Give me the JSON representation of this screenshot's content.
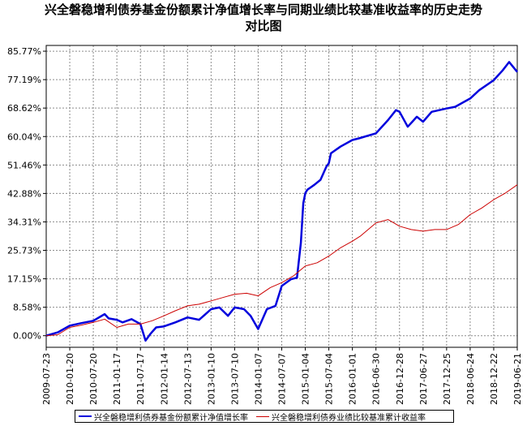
{
  "chart_data": {
    "type": "line",
    "title_lines": [
      "兴全磐稳增利债券基金份额累计净值增长率与同期业绩比较基准收益率的历史走势",
      "对比图"
    ],
    "y_ticks": [
      "85.77%",
      "77.19%",
      "68.62%",
      "60.04%",
      "51.46%",
      "42.88%",
      "34.31%",
      "25.73%",
      "17.15%",
      "8.58%",
      "0.00%"
    ],
    "y_tick_values": [
      85.77,
      77.19,
      68.62,
      60.04,
      51.46,
      42.88,
      34.31,
      25.73,
      17.15,
      8.58,
      0.0
    ],
    "ylim": [
      -3.5,
      87.5
    ],
    "x_ticks": [
      "2009-07-23",
      "2010-01-20",
      "2010-07-20",
      "2011-01-17",
      "2011-07-17",
      "2012-01-14",
      "2012-07-13",
      "2013-01-10",
      "2013-07-10",
      "2014-01-07",
      "2014-07-07",
      "2015-01-04",
      "2015-07-04",
      "2016-01-01",
      "2016-06-30",
      "2016-12-28",
      "2017-06-27",
      "2017-12-25",
      "2018-06-24",
      "2018-12-22",
      "2019-06-21"
    ],
    "grid": true,
    "legend_position": "bottom",
    "series": [
      {
        "name": "兴全磐稳增利债券基金份额累计净值增长率",
        "color": "#0000dd",
        "x": [
          "2009-07-23",
          "2009-10-20",
          "2010-01-20",
          "2010-04-20",
          "2010-07-20",
          "2010-10-15",
          "2010-11-15",
          "2011-01-17",
          "2011-03-01",
          "2011-05-10",
          "2011-07-17",
          "2011-08-25",
          "2011-10-01",
          "2011-11-15",
          "2012-01-14",
          "2012-04-10",
          "2012-07-13",
          "2012-10-10",
          "2013-01-10",
          "2013-03-15",
          "2013-05-20",
          "2013-07-10",
          "2013-09-20",
          "2013-11-10",
          "2014-01-07",
          "2014-03-15",
          "2014-05-20",
          "2014-07-07",
          "2014-09-15",
          "2014-11-01",
          "2014-12-01",
          "2014-12-20",
          "2015-01-04",
          "2015-01-20",
          "2015-03-15",
          "2015-05-01",
          "2015-06-15",
          "2015-07-04",
          "2015-07-20",
          "2015-10-01",
          "2016-01-01",
          "2016-02-20",
          "2016-06-30",
          "2016-10-01",
          "2016-12-01",
          "2016-12-28",
          "2017-03-01",
          "2017-05-10",
          "2017-06-27",
          "2017-09-01",
          "2017-12-25",
          "2018-03-01",
          "2018-06-24",
          "2018-09-01",
          "2018-12-22",
          "2019-03-01",
          "2019-04-20",
          "2019-06-21"
        ],
        "values": [
          0.0,
          1.0,
          3.0,
          3.8,
          4.5,
          6.5,
          5.2,
          4.8,
          4.0,
          5.0,
          3.5,
          -1.5,
          0.5,
          2.5,
          2.8,
          4.0,
          5.5,
          4.8,
          8.0,
          8.5,
          6.0,
          8.5,
          8.0,
          6.0,
          2.0,
          8.0,
          9.0,
          15.0,
          17.0,
          17.5,
          28.0,
          40.0,
          43.0,
          44.0,
          45.5,
          47.0,
          51.0,
          52.0,
          55.0,
          57.0,
          59.0,
          59.5,
          61.0,
          65.0,
          68.0,
          67.5,
          63.0,
          66.0,
          64.5,
          67.5,
          68.5,
          69.0,
          71.5,
          74.0,
          77.0,
          80.0,
          82.5,
          79.5
        ]
      },
      {
        "name": "兴全磐稳增利债券业绩比较基准累计收益率",
        "color": "#cc0000",
        "x": [
          "2009-07-23",
          "2009-10-20",
          "2010-01-20",
          "2010-04-20",
          "2010-07-20",
          "2010-10-15",
          "2011-01-17",
          "2011-04-15",
          "2011-07-17",
          "2011-10-15",
          "2012-01-14",
          "2012-04-10",
          "2012-07-13",
          "2012-10-10",
          "2013-01-10",
          "2013-04-10",
          "2013-07-10",
          "2013-10-10",
          "2014-01-07",
          "2014-04-10",
          "2014-07-07",
          "2014-10-05",
          "2015-01-04",
          "2015-04-05",
          "2015-07-04",
          "2015-10-01",
          "2016-01-01",
          "2016-03-01",
          "2016-06-30",
          "2016-10-01",
          "2016-12-28",
          "2017-03-28",
          "2017-06-27",
          "2017-09-25",
          "2017-12-25",
          "2018-03-25",
          "2018-06-24",
          "2018-09-22",
          "2018-12-22",
          "2019-03-22",
          "2019-06-21"
        ],
        "values": [
          0.0,
          0.3,
          2.5,
          3.2,
          4.0,
          5.0,
          2.5,
          3.5,
          3.5,
          4.5,
          6.0,
          7.5,
          9.0,
          9.5,
          10.5,
          11.5,
          12.5,
          12.8,
          12.0,
          14.5,
          16.0,
          18.0,
          21.0,
          22.0,
          24.0,
          26.5,
          28.5,
          30.0,
          34.0,
          35.0,
          33.0,
          32.0,
          31.5,
          32.0,
          32.0,
          33.5,
          36.5,
          38.5,
          41.0,
          43.0,
          45.5
        ]
      }
    ]
  }
}
